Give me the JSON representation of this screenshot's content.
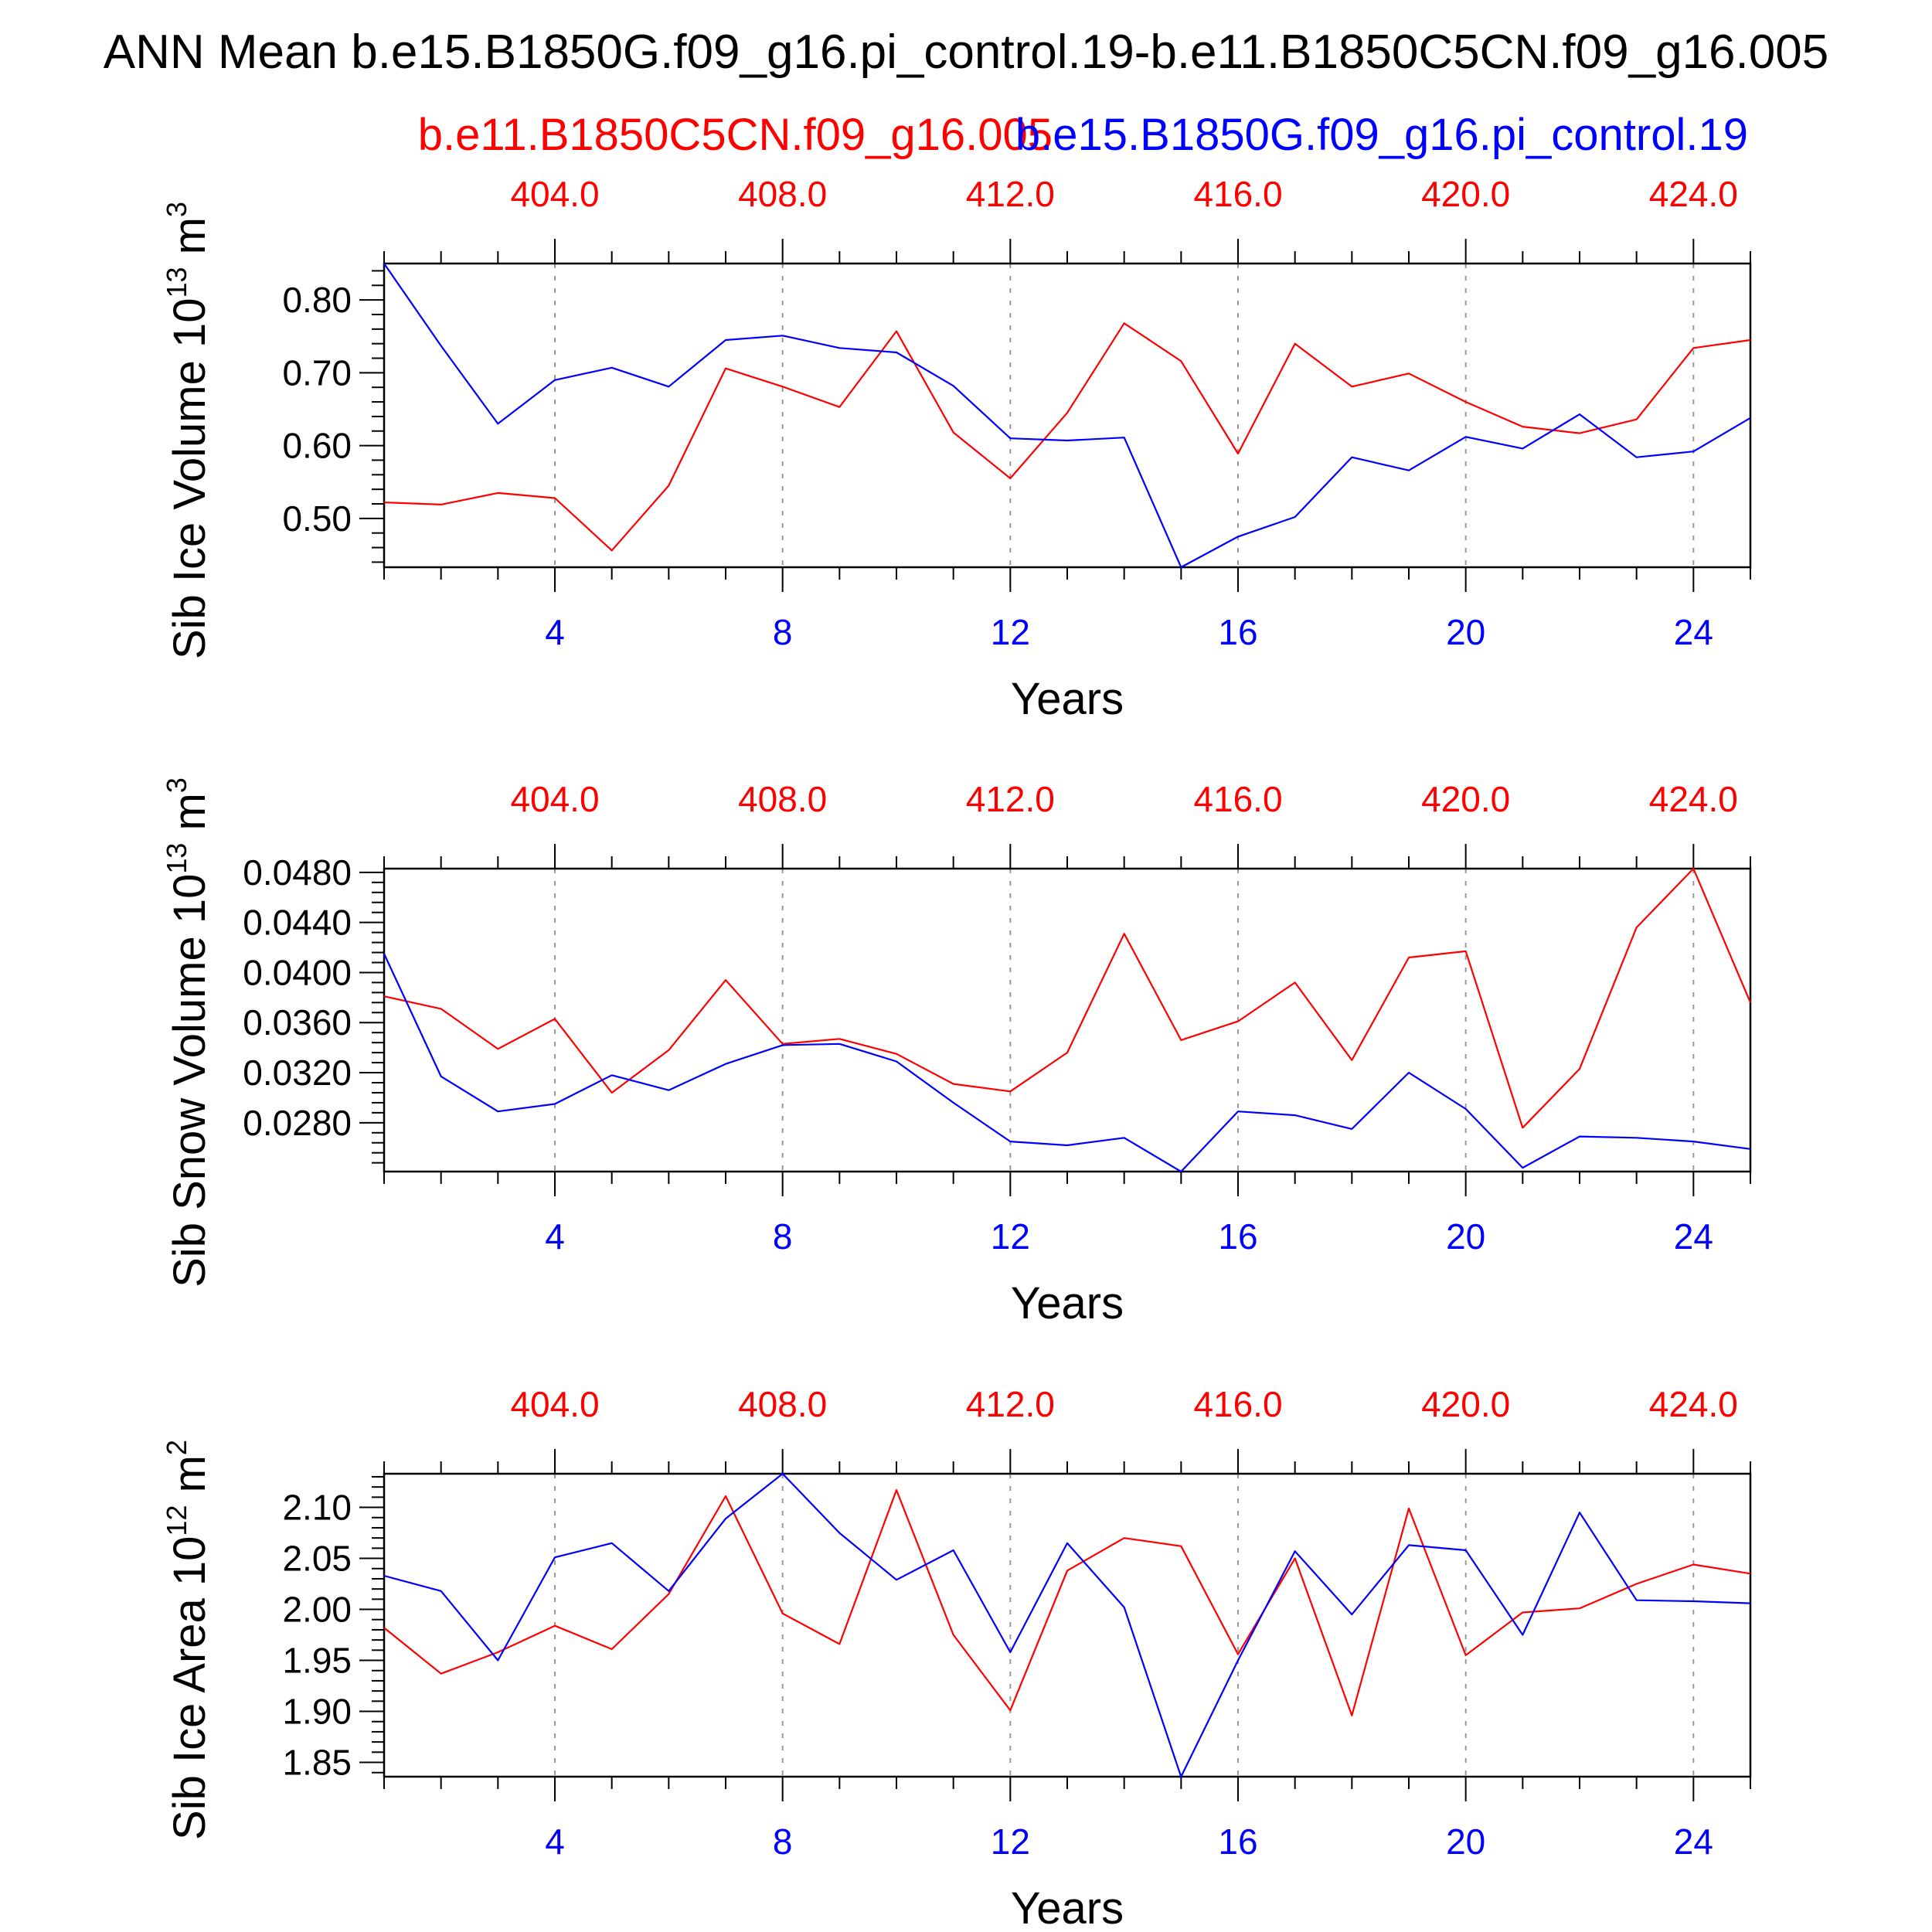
{
  "title": "ANN Mean b.e15.B1850G.f09_g16.pi_control.19-b.e11.B1850C5CN.f09_g16.005",
  "legend": {
    "red_name": "b.e11.B1850C5CN.f09_g16.005",
    "blue_name": "b.e15.B1850G.f09_g16.pi_control.19"
  },
  "colors": {
    "red": "#ff0000",
    "blue": "#0000ff",
    "axis": "#000000",
    "grid": "#999999"
  },
  "chart_data": [
    {
      "type": "line",
      "ylabel": "Sib Ice Volume 10",
      "ylabel_exp": "13",
      "ylabel_unit": "m",
      "ylabel_unit_exp": "3",
      "xlabel": "Years",
      "xlim": [
        1,
        25
      ],
      "ylim": [
        0.433,
        0.85
      ],
      "yticks": [
        0.5,
        0.6,
        0.7,
        0.8
      ],
      "ytick_labels": [
        "0.50",
        "0.60",
        "0.70",
        "0.80"
      ],
      "yminor_step": 0.02,
      "x_bottom_ticks": [
        4,
        8,
        12,
        16,
        20,
        24
      ],
      "x_bottom_labels": [
        "4",
        "8",
        "12",
        "16",
        "20",
        "24"
      ],
      "x_top_labels": [
        "404.0",
        "408.0",
        "412.0",
        "416.0",
        "420.0",
        "424.0"
      ],
      "series": [
        {
          "name": "b.e11.B1850C5CN.f09_g16.005",
          "color": "#ff0000",
          "x": [
            1,
            2,
            3,
            4,
            5,
            6,
            7,
            8,
            9,
            10,
            11,
            12,
            13,
            14,
            15,
            16,
            17,
            18,
            19,
            20,
            21,
            22,
            23,
            24,
            25
          ],
          "values": [
            0.522,
            0.519,
            0.535,
            0.528,
            0.456,
            0.545,
            0.706,
            0.681,
            0.653,
            0.757,
            0.618,
            0.555,
            0.645,
            0.768,
            0.716,
            0.589,
            0.74,
            0.681,
            0.699,
            0.66,
            0.626,
            0.617,
            0.636,
            0.734,
            0.745
          ]
        },
        {
          "name": "b.e15.B1850G.f09_g16.pi_control.19",
          "color": "#0000ff",
          "x": [
            1,
            2,
            3,
            4,
            5,
            6,
            7,
            8,
            9,
            10,
            11,
            12,
            13,
            14,
            15,
            16,
            17,
            18,
            19,
            20,
            21,
            22,
            23,
            24,
            25
          ],
          "values": [
            0.85,
            0.737,
            0.63,
            0.69,
            0.707,
            0.681,
            0.745,
            0.751,
            0.734,
            0.728,
            0.682,
            0.61,
            0.607,
            0.611,
            0.433,
            0.475,
            0.502,
            0.584,
            0.566,
            0.612,
            0.596,
            0.643,
            0.584,
            0.592,
            0.638
          ]
        }
      ]
    },
    {
      "type": "line",
      "ylabel": "Sib Snow Volume 10",
      "ylabel_exp": "13",
      "ylabel_unit": "m",
      "ylabel_unit_exp": "3",
      "xlabel": "Years",
      "xlim": [
        1,
        25
      ],
      "ylim": [
        0.0241,
        0.0483
      ],
      "yticks": [
        0.028,
        0.032,
        0.036,
        0.04,
        0.044,
        0.048
      ],
      "ytick_labels": [
        "0.0280",
        "0.0320",
        "0.0360",
        "0.0400",
        "0.0440",
        "0.0480"
      ],
      "yminor_step": 0.0008,
      "x_bottom_ticks": [
        4,
        8,
        12,
        16,
        20,
        24
      ],
      "x_bottom_labels": [
        "4",
        "8",
        "12",
        "16",
        "20",
        "24"
      ],
      "x_top_labels": [
        "404.0",
        "408.0",
        "412.0",
        "416.0",
        "420.0",
        "424.0"
      ],
      "series": [
        {
          "name": "b.e11.B1850C5CN.f09_g16.005",
          "color": "#ff0000",
          "x": [
            1,
            2,
            3,
            4,
            5,
            6,
            7,
            8,
            9,
            10,
            11,
            12,
            13,
            14,
            15,
            16,
            17,
            18,
            19,
            20,
            21,
            22,
            23,
            24,
            25
          ],
          "values": [
            0.0381,
            0.0371,
            0.0339,
            0.0363,
            0.0304,
            0.0338,
            0.0394,
            0.0343,
            0.0347,
            0.0335,
            0.0311,
            0.0305,
            0.0336,
            0.0431,
            0.0346,
            0.0361,
            0.0392,
            0.033,
            0.0412,
            0.0417,
            0.0276,
            0.0323,
            0.0436,
            0.0483,
            0.0376
          ]
        },
        {
          "name": "b.e15.B1850G.f09_g16.pi_control.19",
          "color": "#0000ff",
          "x": [
            1,
            2,
            3,
            4,
            5,
            6,
            7,
            8,
            9,
            10,
            11,
            12,
            13,
            14,
            15,
            16,
            17,
            18,
            19,
            20,
            21,
            22,
            23,
            24,
            25
          ],
          "values": [
            0.0415,
            0.0317,
            0.0289,
            0.0295,
            0.0318,
            0.0306,
            0.0327,
            0.0342,
            0.0343,
            0.0329,
            0.0296,
            0.0265,
            0.0262,
            0.0268,
            0.0241,
            0.0289,
            0.0286,
            0.0275,
            0.032,
            0.0291,
            0.0244,
            0.0269,
            0.0268,
            0.0265,
            0.0259
          ]
        }
      ]
    },
    {
      "type": "line",
      "ylabel": "Sib Ice Area 10",
      "ylabel_exp": "12",
      "ylabel_unit": "m",
      "ylabel_unit_exp": "2",
      "xlabel": "Years",
      "xlim": [
        1,
        25
      ],
      "ylim": [
        1.836,
        2.133
      ],
      "yticks": [
        1.85,
        1.9,
        1.95,
        2.0,
        2.05,
        2.1
      ],
      "ytick_labels": [
        "1.85",
        "1.90",
        "1.95",
        "2.00",
        "2.05",
        "2.10"
      ],
      "yminor_step": 0.01,
      "x_bottom_ticks": [
        4,
        8,
        12,
        16,
        20,
        24
      ],
      "x_bottom_labels": [
        "4",
        "8",
        "12",
        "16",
        "20",
        "24"
      ],
      "x_top_labels": [
        "404.0",
        "408.0",
        "412.0",
        "416.0",
        "420.0",
        "424.0"
      ],
      "series": [
        {
          "name": "b.e11.B1850C5CN.f09_g16.005",
          "color": "#ff0000",
          "x": [
            1,
            2,
            3,
            4,
            5,
            6,
            7,
            8,
            9,
            10,
            11,
            12,
            13,
            14,
            15,
            16,
            17,
            18,
            19,
            20,
            21,
            22,
            23,
            24,
            25
          ],
          "values": [
            1.982,
            1.937,
            1.958,
            1.984,
            1.961,
            2.015,
            2.111,
            1.996,
            1.966,
            2.117,
            1.975,
            1.901,
            2.038,
            2.07,
            2.062,
            1.956,
            2.05,
            1.896,
            2.099,
            1.955,
            1.997,
            2.001,
            2.025,
            2.044,
            2.035
          ]
        },
        {
          "name": "b.e15.B1850G.f09_g16.pi_control.19",
          "color": "#0000ff",
          "x": [
            1,
            2,
            3,
            4,
            5,
            6,
            7,
            8,
            9,
            10,
            11,
            12,
            13,
            14,
            15,
            16,
            17,
            18,
            19,
            20,
            21,
            22,
            23,
            24,
            25
          ],
          "values": [
            2.033,
            2.018,
            1.95,
            2.051,
            2.065,
            2.018,
            2.089,
            2.133,
            2.075,
            2.029,
            2.058,
            1.958,
            2.065,
            2.002,
            1.836,
            1.95,
            2.057,
            1.995,
            2.063,
            2.058,
            1.975,
            2.095,
            2.009,
            2.008,
            2.006
          ]
        }
      ]
    }
  ]
}
